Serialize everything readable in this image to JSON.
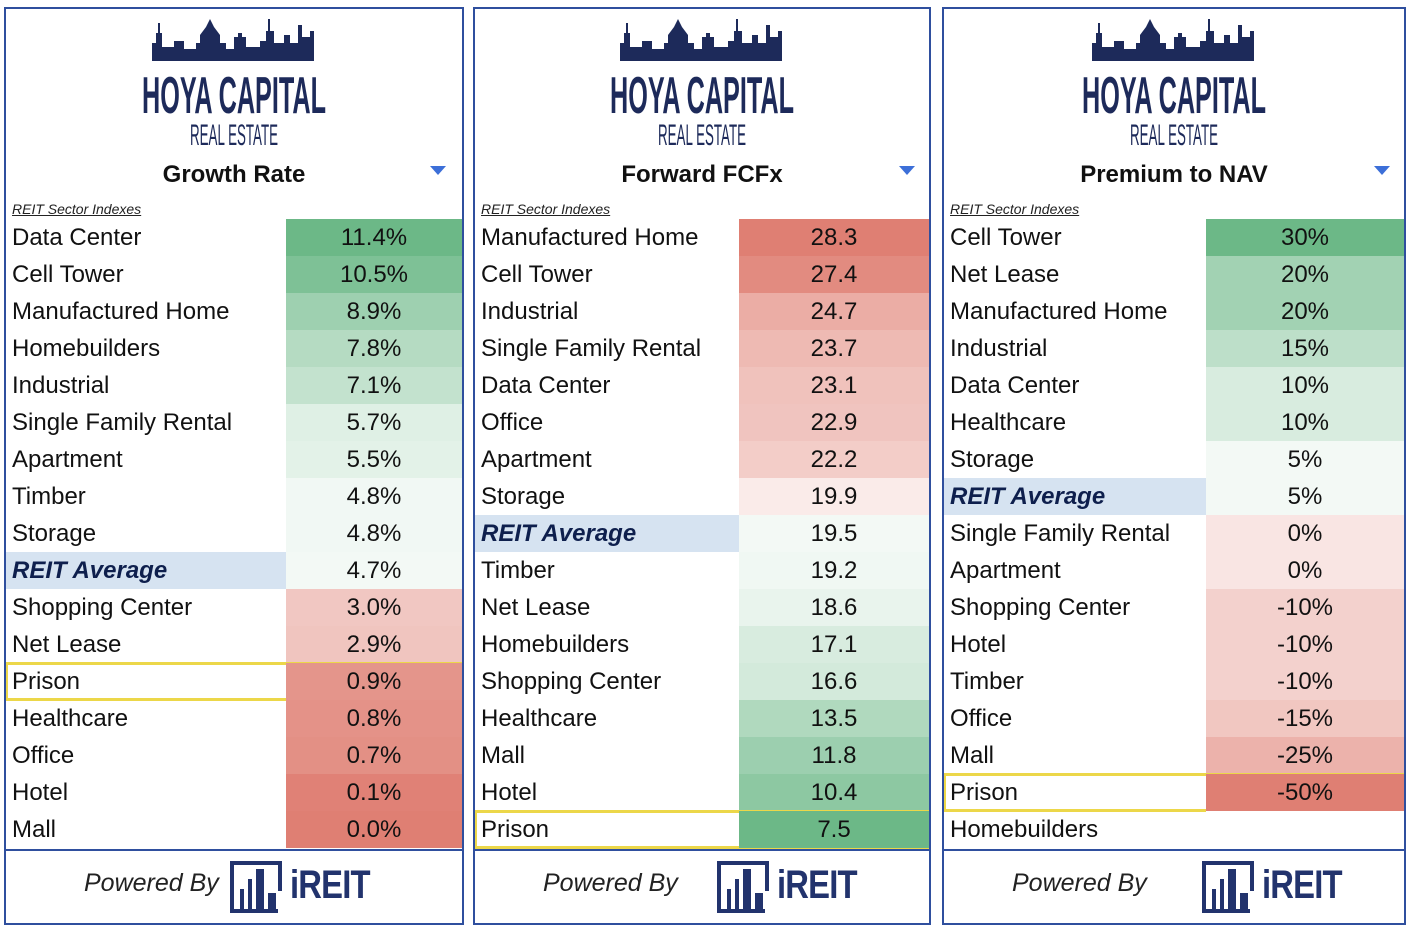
{
  "brand": {
    "logo_main": "HOYA CAPITAL",
    "logo_sub": "REAL ESTATE",
    "powered_by": "Powered By",
    "ireit": "iREIT"
  },
  "index_label": "REIT Sector Indexes",
  "colors": {
    "border": "#2f4f9e",
    "highlight": "#ecd749",
    "avg_bg": "#d6e3f1",
    "green": "#6cb887",
    "red": "#df7f73"
  },
  "chart_data": [
    {
      "type": "table",
      "title": "Growth Rate",
      "categories": [
        "Data Center",
        "Cell Tower",
        "Manufactured Home",
        "Homebuilders",
        "Industrial",
        "Single Family Rental",
        "Apartment",
        "Timber",
        "Storage",
        "REIT Average",
        "Shopping Center",
        "Net Lease",
        "Prison",
        "Healthcare",
        "Office",
        "Hotel",
        "Mall"
      ],
      "values": [
        11.4,
        10.5,
        8.9,
        7.8,
        7.1,
        5.7,
        5.5,
        4.8,
        4.8,
        4.7,
        3.0,
        2.9,
        0.9,
        0.8,
        0.7,
        0.1,
        0.0
      ],
      "labels": [
        "11.4%",
        "10.5%",
        "8.9%",
        "7.8%",
        "7.1%",
        "5.7%",
        "5.5%",
        "4.8%",
        "4.8%",
        "4.7%",
        "3.0%",
        "2.9%",
        "0.9%",
        "0.8%",
        "0.7%",
        "0.1%",
        "0.0%"
      ],
      "highlight": "Prison",
      "higher_is_green": true
    },
    {
      "type": "table",
      "title": "Forward FCFx",
      "categories": [
        "Manufactured Home",
        "Cell Tower",
        "Industrial",
        "Single Family Rental",
        "Data Center",
        "Office",
        "Apartment",
        "Storage",
        "REIT Average",
        "Timber",
        "Net Lease",
        "Homebuilders",
        "Shopping Center",
        "Healthcare",
        "Mall",
        "Hotel",
        "Prison"
      ],
      "values": [
        28.3,
        27.4,
        24.7,
        23.7,
        23.1,
        22.9,
        22.2,
        19.9,
        19.5,
        19.2,
        18.6,
        17.1,
        16.6,
        13.5,
        11.8,
        10.4,
        7.5
      ],
      "labels": [
        "28.3",
        "27.4",
        "24.7",
        "23.7",
        "23.1",
        "22.9",
        "22.2",
        "19.9",
        "19.5",
        "19.2",
        "18.6",
        "17.1",
        "16.6",
        "13.5",
        "11.8",
        "10.4",
        "7.5"
      ],
      "highlight": "Prison",
      "higher_is_green": false
    },
    {
      "type": "table",
      "title": "Premium to NAV",
      "categories": [
        "Cell Tower",
        "Net Lease",
        "Manufactured Home",
        "Industrial",
        "Data Center",
        "Healthcare",
        "Storage",
        "REIT Average",
        "Single Family Rental",
        "Apartment",
        "Shopping Center",
        "Hotel",
        "Timber",
        "Office",
        "Mall",
        "Prison",
        "Homebuilders"
      ],
      "values": [
        30,
        20,
        20,
        15,
        10,
        10,
        5,
        5,
        0,
        0,
        -10,
        -10,
        -10,
        -15,
        -25,
        -50,
        null
      ],
      "labels": [
        "30%",
        "20%",
        "20%",
        "15%",
        "10%",
        "10%",
        "5%",
        "5%",
        "0%",
        "0%",
        "-10%",
        "-10%",
        "-10%",
        "-15%",
        "-25%",
        "-50%",
        ""
      ],
      "highlight": "Prison",
      "higher_is_green": true
    }
  ]
}
